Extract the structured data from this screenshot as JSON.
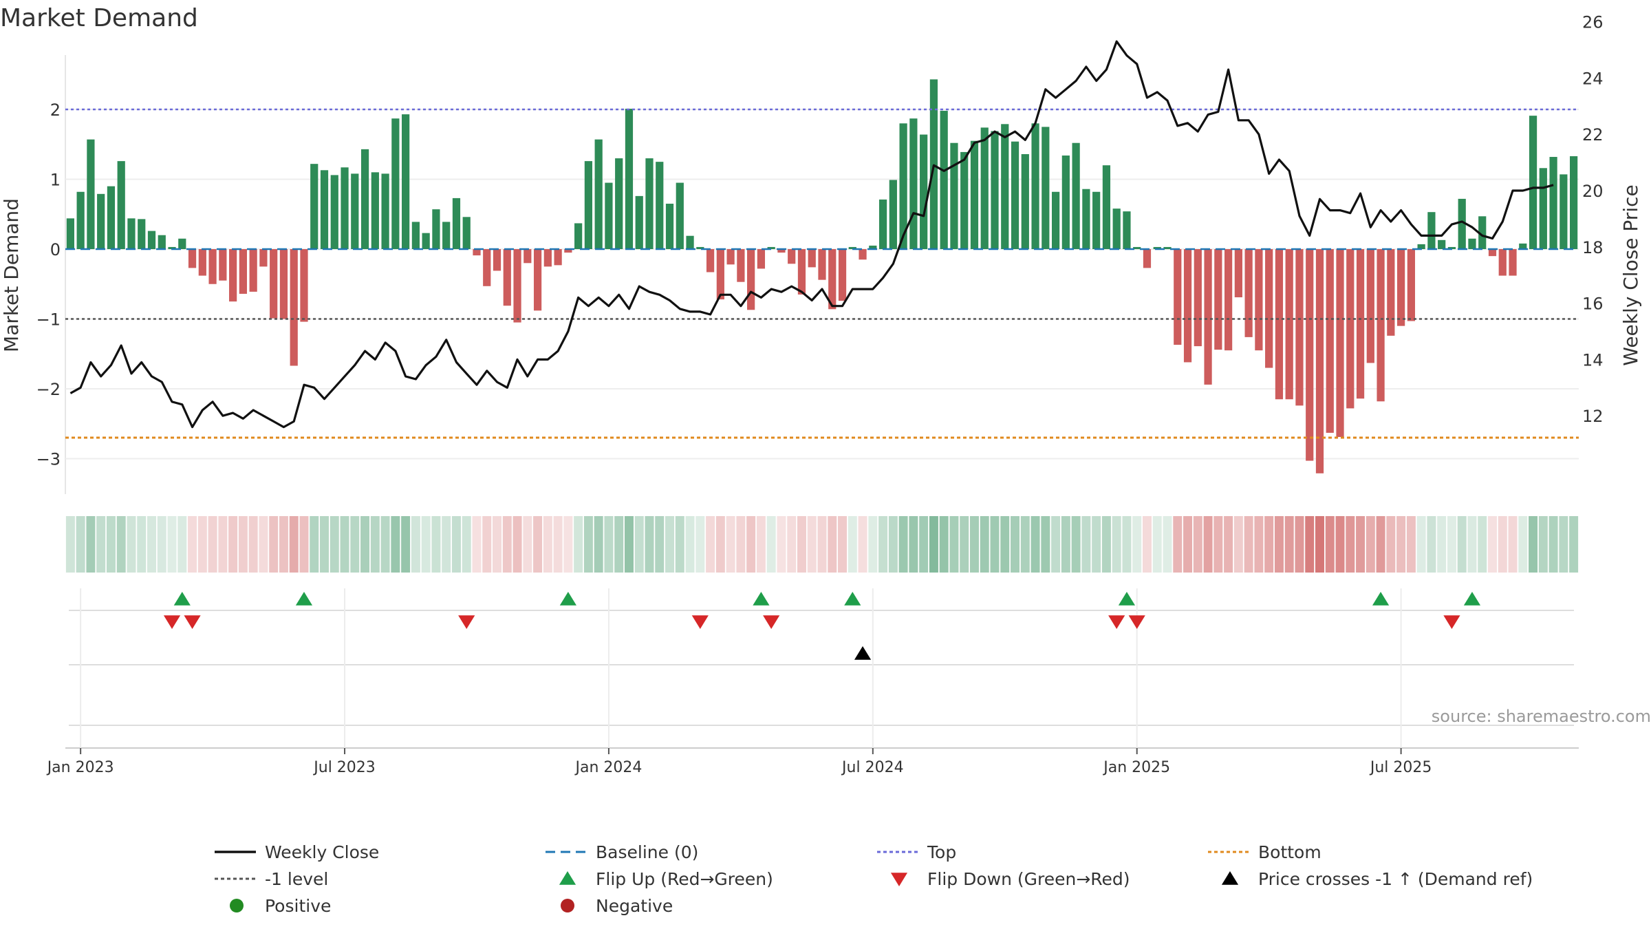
{
  "title": "Market Demand",
  "source": "source: sharemaestro.com",
  "colors": {
    "positive": "#2e8b57",
    "negative": "#cd5c5c",
    "price": "#111111",
    "baseline": "#1f77b4",
    "top": "#6a6ad8",
    "bottom": "#e08a1e",
    "neg_level": "#555555",
    "flip_up": "#1f9e4a",
    "flip_down": "#d62728",
    "cross": "#000000",
    "legend_pos": "#228b22",
    "legend_neg": "#b22222"
  },
  "chart_data": {
    "type": "bar",
    "title": "Market Demand",
    "ylabel": "Market Demand",
    "y2label": "Weekly Close Price",
    "ylim": [
      -3.5,
      2.8
    ],
    "y2lim": [
      10.7,
      26.3
    ],
    "yticks": [
      {
        "v": 2,
        "label": "2"
      },
      {
        "v": 1,
        "label": "1"
      },
      {
        "v": 0,
        "label": "0"
      },
      {
        "v": -1,
        "label": "−1"
      },
      {
        "v": -2,
        "label": "−2"
      },
      {
        "v": -3,
        "label": "−3"
      }
    ],
    "y2ticks": [
      {
        "v": 26,
        "label": "26"
      },
      {
        "v": 24,
        "label": "24"
      },
      {
        "v": 22,
        "label": "22"
      },
      {
        "v": 20,
        "label": "20"
      },
      {
        "v": 18,
        "label": "18"
      },
      {
        "v": 16,
        "label": "16"
      },
      {
        "v": 14,
        "label": "14"
      },
      {
        "v": 12,
        "label": "12"
      }
    ],
    "xticks": [
      {
        "w": 1.5,
        "label": "Jan 2023"
      },
      {
        "w": 27.5,
        "label": "Jul 2023"
      },
      {
        "w": 53.5,
        "label": "Jan 2024"
      },
      {
        "w": 79.5,
        "label": "Jul 2024"
      },
      {
        "w": 105.5,
        "label": "Jan 2025"
      },
      {
        "w": 131.5,
        "label": "Jul 2025"
      }
    ],
    "levels": {
      "top": 2,
      "bottom": -2.7,
      "neg_level": -1,
      "baseline": 0
    },
    "demand": [
      0.44,
      0.82,
      1.57,
      0.79,
      0.9,
      1.26,
      0.44,
      0.43,
      0.26,
      0.2,
      0.03,
      0.15,
      -0.27,
      -0.38,
      -0.5,
      -0.45,
      -0.75,
      -0.64,
      -0.61,
      -0.25,
      -0.99,
      -1.0,
      -1.67,
      -1.04,
      1.22,
      1.13,
      1.06,
      1.17,
      1.08,
      1.43,
      1.1,
      1.08,
      1.87,
      1.93,
      0.39,
      0.23,
      0.57,
      0.39,
      0.73,
      0.46,
      -0.09,
      -0.53,
      -0.31,
      -0.81,
      -1.05,
      -0.2,
      -0.88,
      -0.25,
      -0.23,
      -0.05,
      0.37,
      1.26,
      1.57,
      0.95,
      1.3,
      2.01,
      0.76,
      1.3,
      1.25,
      0.65,
      0.95,
      0.19,
      0.03,
      -0.33,
      -0.72,
      -0.22,
      -0.47,
      -0.87,
      -0.28,
      0.03,
      -0.05,
      -0.21,
      -0.65,
      -0.26,
      -0.44,
      -0.86,
      -0.74,
      0.03,
      -0.15,
      0.05,
      0.71,
      0.99,
      1.8,
      1.87,
      1.64,
      2.43,
      1.98,
      1.52,
      1.39,
      1.55,
      1.74,
      1.69,
      1.79,
      1.54,
      1.36,
      1.8,
      1.75,
      0.82,
      1.34,
      1.52,
      0.86,
      0.82,
      1.2,
      0.58,
      0.54,
      0.03,
      -0.27,
      0.03,
      0.03,
      -1.37,
      -1.62,
      -1.39,
      -1.94,
      -1.44,
      -1.45,
      -0.69,
      -1.26,
      -1.45,
      -1.7,
      -2.15,
      -2.15,
      -2.24,
      -3.03,
      -3.21,
      -2.63,
      -2.69,
      -2.28,
      -2.14,
      -1.63,
      -2.18,
      -1.24,
      -1.1,
      -1.03,
      0.07,
      0.53,
      0.13,
      0.03,
      0.72,
      0.15,
      0.47,
      -0.1,
      -0.38,
      -0.38,
      0.08,
      1.91,
      1.16,
      1.32,
      1.07,
      1.33
    ],
    "price": [
      12.8,
      13.0,
      13.9,
      13.4,
      13.8,
      14.5,
      13.5,
      13.9,
      13.4,
      13.2,
      12.5,
      12.4,
      11.6,
      12.2,
      12.5,
      12.0,
      12.1,
      11.9,
      12.2,
      12.0,
      11.8,
      11.6,
      11.8,
      13.1,
      13.0,
      12.6,
      13.0,
      13.4,
      13.8,
      14.3,
      14.0,
      14.6,
      14.3,
      13.4,
      13.3,
      13.8,
      14.1,
      14.7,
      13.9,
      13.5,
      13.1,
      13.6,
      13.2,
      13.0,
      14.0,
      13.4,
      14.0,
      14.0,
      14.3,
      15.0,
      16.2,
      15.9,
      16.2,
      15.9,
      16.3,
      15.8,
      16.6,
      16.4,
      16.3,
      16.1,
      15.8,
      15.7,
      15.7,
      15.6,
      16.3,
      16.3,
      15.9,
      16.4,
      16.2,
      16.5,
      16.4,
      16.6,
      16.4,
      16.1,
      16.5,
      15.9,
      15.9,
      16.5,
      16.5,
      16.5,
      16.9,
      17.4,
      18.4,
      19.2,
      19.1,
      20.9,
      20.7,
      20.9,
      21.1,
      21.7,
      21.8,
      22.1,
      21.9,
      22.1,
      21.8,
      22.4,
      23.6,
      23.3,
      23.6,
      23.9,
      24.4,
      23.9,
      24.3,
      25.3,
      24.8,
      24.5,
      23.3,
      23.5,
      23.2,
      22.3,
      22.4,
      22.1,
      22.7,
      22.8,
      24.3,
      22.5,
      22.5,
      22.0,
      20.6,
      21.1,
      20.7,
      19.1,
      18.4,
      19.7,
      19.3,
      19.3,
      19.2,
      19.9,
      18.7,
      19.3,
      18.9,
      19.3,
      18.8,
      18.4,
      18.4,
      18.4,
      18.8,
      18.9,
      18.7,
      18.4,
      18.3,
      18.9,
      20.0,
      20.0,
      20.1,
      20.1,
      20.2
    ],
    "flip_up_weeks": [
      11.5,
      23.5,
      49.5,
      68.5,
      77.5,
      104.5,
      129.5,
      138.5
    ],
    "flip_down_weeks": [
      10.5,
      12.5,
      39.5,
      62.5,
      69.5,
      103.5,
      105.5,
      136.5
    ],
    "cross_weeks": [
      78.5
    ]
  },
  "xaxis": {
    "labels": [
      "Jan 2023",
      "Jul 2023",
      "Jan 2024",
      "Jul 2024",
      "Jan 2025",
      "Jul 2025"
    ]
  },
  "legend": {
    "items": [
      {
        "name": "legend-weekly-close",
        "label": "Weekly Close",
        "kind": "line",
        "color": "#111111"
      },
      {
        "name": "legend-baseline",
        "label": "Baseline (0)",
        "kind": "dash",
        "color": "#1f77b4"
      },
      {
        "name": "legend-top",
        "label": "Top",
        "kind": "dot",
        "color": "#6a6ad8"
      },
      {
        "name": "legend-bottom",
        "label": "Bottom",
        "kind": "dot",
        "color": "#e08a1e"
      },
      {
        "name": "legend-neg-level",
        "label": "-1 level",
        "kind": "dot",
        "color": "#555555"
      },
      {
        "name": "legend-flip-up",
        "label": "Flip Up (Red→Green)",
        "kind": "tri-up",
        "color": "#1f9e4a"
      },
      {
        "name": "legend-flip-down",
        "label": "Flip Down (Green→Red)",
        "kind": "tri-down",
        "color": "#d62728"
      },
      {
        "name": "legend-price-cross",
        "label": "Price crosses -1 ↑ (Demand ref)",
        "kind": "tri-up",
        "color": "#000000"
      },
      {
        "name": "legend-positive",
        "label": "Positive",
        "kind": "circle",
        "color": "#228b22"
      },
      {
        "name": "legend-negative",
        "label": "Negative",
        "kind": "circle",
        "color": "#b22222"
      }
    ]
  }
}
